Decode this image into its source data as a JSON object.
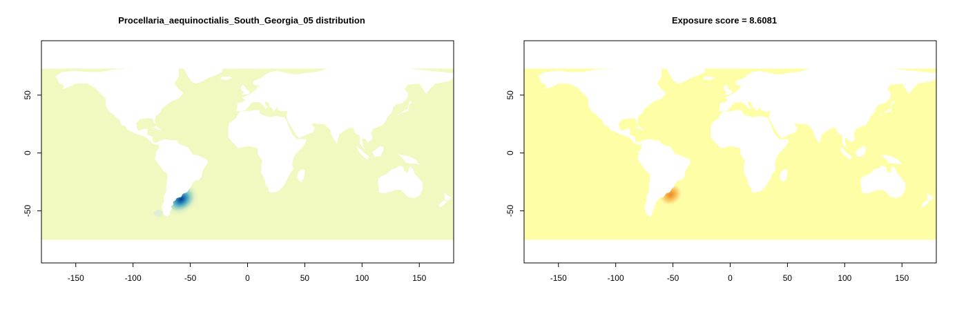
{
  "colors": {
    "ocean_left": "#f1f8c0",
    "ocean_right": "#fdfea6",
    "land": "#ffffff",
    "hotspot_left": [
      "#d8edc4",
      "#9dd2c0",
      "#4ba8c7",
      "#1d6fae",
      "#0a3d85"
    ],
    "hotspot_right": [
      "#fde08a",
      "#f8c25a",
      "#f3a33a",
      "#e8892a"
    ],
    "axis": "#000000"
  },
  "chart_data": [
    {
      "type": "heatmap",
      "title": "Procellaria_aequinoctialis_South_Georgia_05 distribution",
      "xlabel": "",
      "ylabel": "",
      "xlim": [
        -180,
        180
      ],
      "ylim": [
        -95,
        97
      ],
      "xticks": [
        -150,
        -100,
        -50,
        0,
        50,
        100,
        150
      ],
      "yticks": [
        50,
        0,
        -50
      ],
      "ocean_extent": {
        "lat_min": -75,
        "lat_max": 73
      },
      "hotspot": {
        "lon": -58,
        "lat": -40,
        "peak_value": "high"
      },
      "grid": false
    },
    {
      "type": "heatmap",
      "title": "Exposure score = 8.6081",
      "xlabel": "",
      "ylabel": "",
      "xlim": [
        -180,
        180
      ],
      "ylim": [
        -95,
        97
      ],
      "xticks": [
        -150,
        -100,
        -50,
        0,
        50,
        100,
        150
      ],
      "yticks": [
        50,
        0,
        -50
      ],
      "ocean_extent": {
        "lat_min": -75,
        "lat_max": 73
      },
      "hotspot": {
        "lon": -52,
        "lat": -36,
        "peak_value": "moderate"
      },
      "grid": false
    }
  ]
}
